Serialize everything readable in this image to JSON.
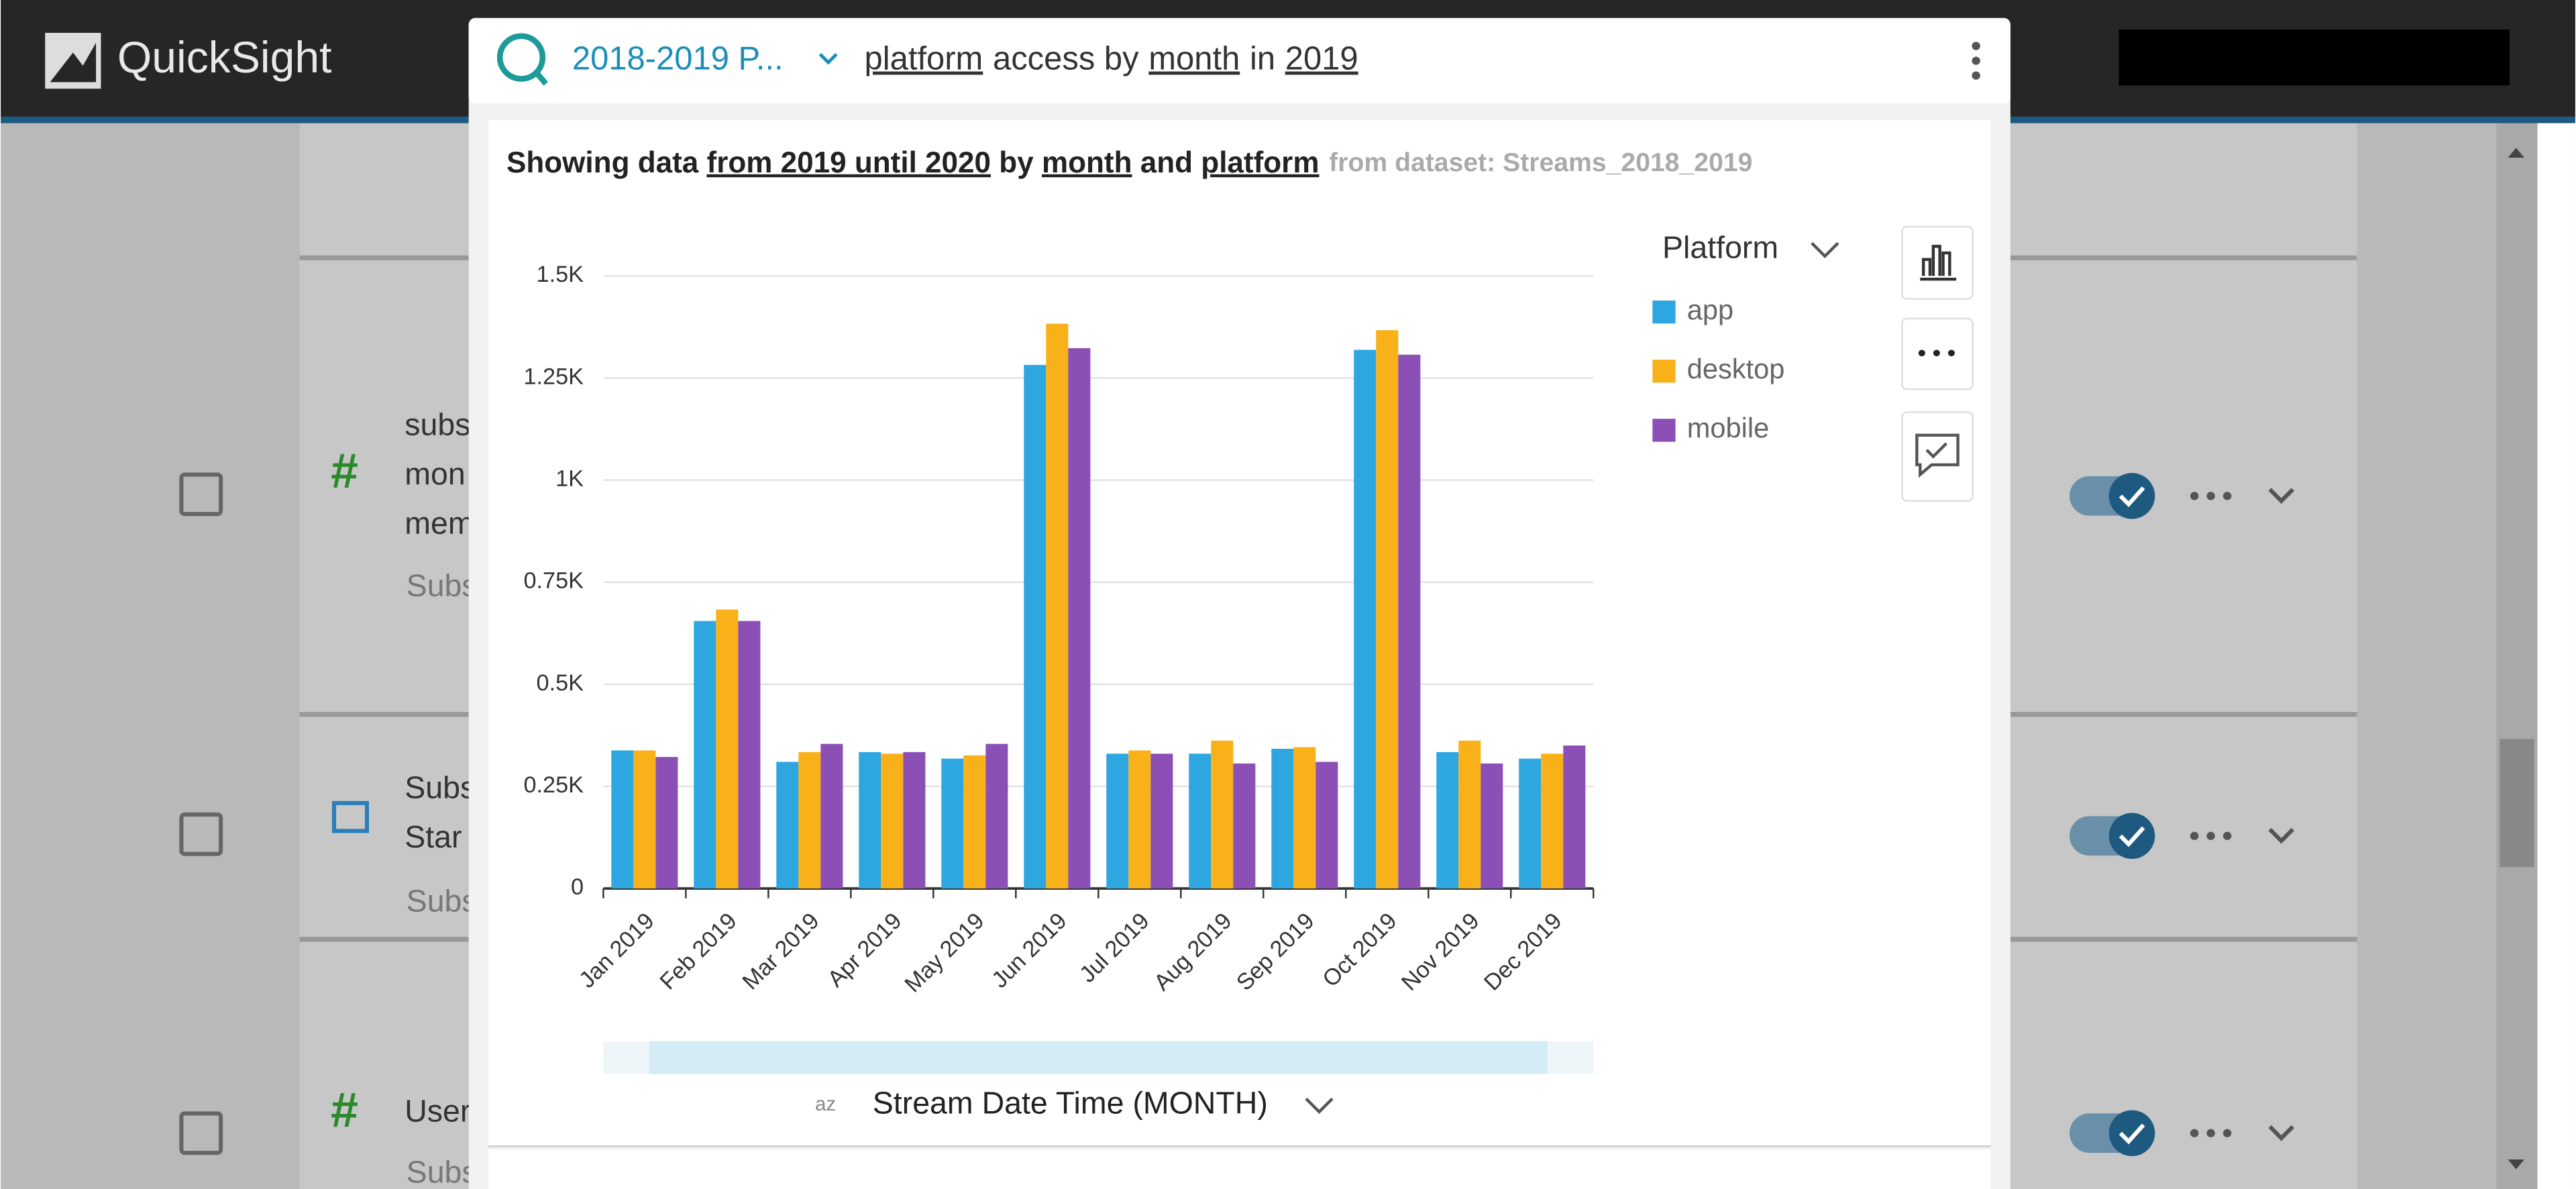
{
  "app": {
    "brand": "QuickSight",
    "analysis": "2018-2019 P...",
    "question": [
      "platform",
      "access by",
      "month",
      "in",
      "2019"
    ],
    "description": [
      "Showing data",
      "from 2019 until 2020",
      "by",
      "month",
      "and",
      "platform"
    ],
    "dataset": "from dataset: Streams_2018_2019",
    "background_rows": [
      [
        "subs",
        "mon",
        "mem",
        "Subs"
      ],
      [
        "Subs",
        "Star",
        "Subs"
      ],
      [
        "User",
        "Subs"
      ]
    ]
  },
  "chart_data": {
    "type": "bar",
    "legend_title": "Platform",
    "xlabel": "Stream Date Time (MONTH)",
    "categories": [
      "Jan 2019",
      "Feb 2019",
      "Mar 2019",
      "Apr 2019",
      "May 2019",
      "Jun 2019",
      "Jul 2019",
      "Aug 2019",
      "Sep 2019",
      "Oct 2019",
      "Nov 2019",
      "Dec 2019"
    ],
    "series": [
      {
        "name": "app",
        "color": "#2ea7e0",
        "values": [
          338,
          655,
          310,
          334,
          318,
          1282,
          330,
          330,
          342,
          1319,
          334,
          318
        ]
      },
      {
        "name": "desktop",
        "color": "#f9b11a",
        "values": [
          338,
          683,
          334,
          330,
          326,
          1383,
          338,
          362,
          346,
          1367,
          362,
          330
        ]
      },
      {
        "name": "mobile",
        "color": "#8c4fb5",
        "values": [
          322,
          655,
          354,
          334,
          354,
          1323,
          330,
          306,
          310,
          1307,
          306,
          350
        ]
      }
    ],
    "ylim": [
      0,
      1500
    ],
    "yticks": [
      0,
      {
        "value": 250,
        "label": "0.25K"
      },
      {
        "value": 500,
        "label": "0.5K"
      },
      {
        "value": 750,
        "label": "0.75K"
      },
      {
        "value": 1000,
        "label": "1K"
      },
      {
        "value": 1250,
        "label": "1.25K"
      },
      {
        "value": 1500,
        "label": "1.5K"
      }
    ],
    "grid": true
  }
}
